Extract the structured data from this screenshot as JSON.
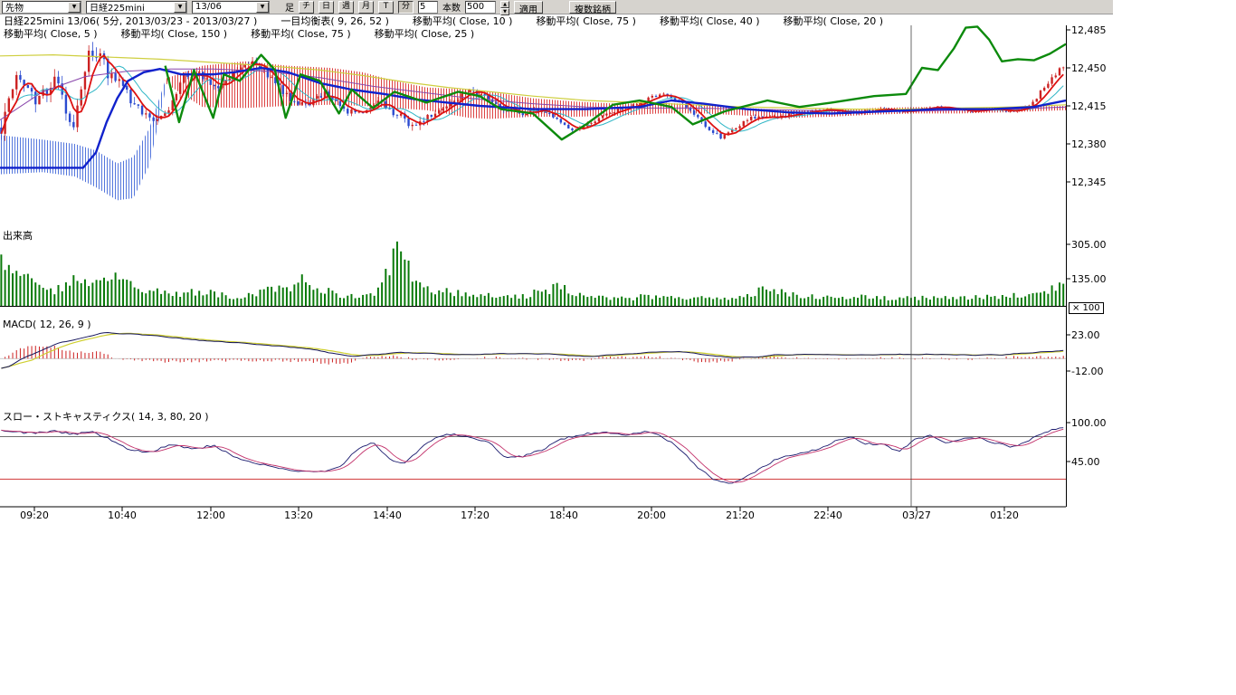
{
  "toolbar": {
    "category": "先物",
    "symbol": "日経225mini",
    "contract": "13/06",
    "bar_label": "足",
    "timeframes": [
      "チ",
      "日",
      "週",
      "月",
      "T",
      "分"
    ],
    "interval_value": "5",
    "bars_label": "本数",
    "bars_value": "500",
    "apply_label": "適用",
    "multi_symbol_label": "複数銘柄"
  },
  "legend": {
    "row1": [
      "日経225mini 13/06( 5分, 2013/03/23 - 2013/03/27 )",
      "一目均衡表( 9, 26, 52 )",
      "移動平均( Close, 10 )",
      "移動平均( Close, 75 )",
      "移動平均( Close, 40 )",
      "移動平均( Close, 20 )"
    ],
    "row2": [
      "移動平均( Close, 5 )",
      "移動平均( Close, 150 )",
      "移動平均( Close, 75 )",
      "移動平均( Close, 25 )"
    ]
  },
  "panels": {
    "volume_label": "出来高",
    "volume_multiplier": "× 100",
    "macd_label": "MACD( 12, 26, 9 )",
    "stoch_label": "スロー・ストキャスティクス( 14, 3, 80, 20 )"
  },
  "price_axis": [
    "12,485",
    "12,450",
    "12,415",
    "12,380",
    "12,345"
  ],
  "volume_axis": [
    "305.00",
    "135.00"
  ],
  "macd_axis": [
    "23.00",
    "-12.00"
  ],
  "stoch_axis": [
    "100.00",
    "45.00"
  ],
  "time_axis": [
    "09:20",
    "10:40",
    "12:00",
    "13:20",
    "14:40",
    "17:20",
    "18:40",
    "20:00",
    "21:20",
    "22:40",
    "03/27",
    "01:20"
  ],
  "chart_data": {
    "type": "candlestick",
    "title": "日経225mini 13/06 5分足 2013/03/23 - 2013/03/27",
    "bars": 280,
    "price_ticks": [
      12485,
      12450,
      12415,
      12380,
      12345
    ],
    "volume_ticks": [
      305,
      135
    ],
    "macd_ticks": [
      23,
      -12
    ],
    "stoch_ticks": [
      100,
      45
    ],
    "stoch_levels": [
      80,
      20
    ],
    "day_separator_index": 10,
    "close_path": [
      12395,
      12445,
      12420,
      12442,
      12395,
      12470,
      12445,
      12425,
      12408,
      12402,
      12440,
      12445,
      12432,
      12448,
      12455,
      12440,
      12422,
      12416,
      12428,
      12412,
      12406,
      12418,
      12408,
      12396,
      12408,
      12418,
      12428,
      12424,
      12412,
      12408,
      12412,
      12400,
      12392,
      12402,
      12410,
      12415,
      12422,
      12425,
      12415,
      12398,
      12386,
      12398,
      12406,
      12404,
      12408,
      12410,
      12412,
      12408,
      12410,
      12412,
      12410,
      12412,
      12414,
      12412,
      12410,
      12412,
      12410,
      12414,
      12432,
      12452
    ],
    "volatility": [
      [
        0,
        16
      ],
      [
        0.06,
        14
      ],
      [
        0.09,
        18
      ],
      [
        0.12,
        12
      ],
      [
        0.17,
        8
      ],
      [
        0.22,
        7
      ],
      [
        0.28,
        7
      ],
      [
        0.34,
        6
      ],
      [
        0.375,
        10
      ],
      [
        0.42,
        6
      ],
      [
        0.47,
        5
      ],
      [
        0.52,
        4.5
      ],
      [
        0.57,
        3.5
      ],
      [
        0.62,
        4
      ],
      [
        0.67,
        5
      ],
      [
        0.72,
        4
      ],
      [
        0.77,
        3
      ],
      [
        0.82,
        3
      ],
      [
        0.87,
        2.2
      ],
      [
        0.92,
        2.2
      ],
      [
        0.96,
        3
      ],
      [
        1,
        6
      ]
    ],
    "volume_path": [
      280,
      170,
      120,
      95,
      150,
      115,
      170,
      140,
      95,
      75,
      65,
      85,
      70,
      55,
      65,
      95,
      115,
      150,
      85,
      60,
      55,
      85,
      310,
      130,
      90,
      75,
      65,
      60,
      70,
      55,
      85,
      105,
      65,
      50,
      42,
      46,
      56,
      62,
      52,
      46,
      42,
      52,
      82,
      92,
      62,
      52,
      46,
      42,
      52,
      46,
      42,
      46,
      52,
      42,
      46,
      52,
      56,
      62,
      92,
      125
    ],
    "overlays": {
      "blue": [
        [
          0,
          12358
        ],
        [
          0.078,
          12358
        ],
        [
          0.09,
          12372
        ],
        [
          0.1,
          12400
        ],
        [
          0.11,
          12422
        ],
        [
          0.12,
          12438
        ],
        [
          0.135,
          12446
        ],
        [
          0.15,
          12449
        ],
        [
          0.17,
          12444
        ],
        [
          0.2,
          12444
        ],
        [
          0.22,
          12446
        ],
        [
          0.245,
          12450
        ],
        [
          0.27,
          12446
        ],
        [
          0.3,
          12436
        ],
        [
          0.33,
          12430
        ],
        [
          0.36,
          12426
        ],
        [
          0.39,
          12421
        ],
        [
          0.42,
          12418
        ],
        [
          0.45,
          12415
        ],
        [
          0.5,
          12412
        ],
        [
          0.55,
          12412
        ],
        [
          0.6,
          12414
        ],
        [
          0.63,
          12420
        ],
        [
          0.66,
          12417
        ],
        [
          0.7,
          12412
        ],
        [
          0.74,
          12409
        ],
        [
          0.78,
          12408
        ],
        [
          0.83,
          12410
        ],
        [
          0.88,
          12412
        ],
        [
          0.93,
          12412
        ],
        [
          0.97,
          12414
        ],
        [
          1,
          12420
        ]
      ],
      "green": [
        [
          0.155,
          12452
        ],
        [
          0.168,
          12400
        ],
        [
          0.182,
          12448
        ],
        [
          0.2,
          12404
        ],
        [
          0.21,
          12444
        ],
        [
          0.225,
          12438
        ],
        [
          0.245,
          12462
        ],
        [
          0.258,
          12448
        ],
        [
          0.268,
          12404
        ],
        [
          0.282,
          12444
        ],
        [
          0.3,
          12438
        ],
        [
          0.318,
          12408
        ],
        [
          0.33,
          12430
        ],
        [
          0.35,
          12413
        ],
        [
          0.37,
          12428
        ],
        [
          0.4,
          12418
        ],
        [
          0.43,
          12428
        ],
        [
          0.45,
          12424
        ],
        [
          0.47,
          12412
        ],
        [
          0.5,
          12408
        ],
        [
          0.527,
          12384
        ],
        [
          0.55,
          12398
        ],
        [
          0.575,
          12416
        ],
        [
          0.6,
          12420
        ],
        [
          0.63,
          12414
        ],
        [
          0.65,
          12398
        ],
        [
          0.68,
          12410
        ],
        [
          0.72,
          12420
        ],
        [
          0.75,
          12414
        ],
        [
          0.78,
          12418
        ],
        [
          0.82,
          12424
        ],
        [
          0.85,
          12426
        ],
        [
          0.865,
          12450
        ],
        [
          0.88,
          12448
        ],
        [
          0.895,
          12468
        ],
        [
          0.906,
          12487
        ],
        [
          0.917,
          12488
        ],
        [
          0.928,
          12476
        ],
        [
          0.94,
          12456
        ],
        [
          0.955,
          12458
        ],
        [
          0.97,
          12457
        ],
        [
          0.985,
          12463
        ],
        [
          1,
          12472
        ]
      ],
      "yellow": [
        [
          0,
          12461
        ],
        [
          0.05,
          12462
        ],
        [
          0.1,
          12460
        ],
        [
          0.15,
          12458
        ],
        [
          0.2,
          12455
        ],
        [
          0.25,
          12452
        ],
        [
          0.3,
          12448
        ],
        [
          0.34,
          12443
        ],
        [
          0.38,
          12437
        ],
        [
          0.42,
          12432
        ],
        [
          0.46,
          12428
        ],
        [
          0.5,
          12424
        ],
        [
          0.55,
          12420
        ],
        [
          0.6,
          12418
        ],
        [
          0.65,
          12416
        ],
        [
          0.7,
          12414
        ],
        [
          0.75,
          12413
        ],
        [
          0.8,
          12412
        ],
        [
          0.85,
          12412
        ],
        [
          0.9,
          12413
        ],
        [
          0.95,
          12414
        ],
        [
          1,
          12416
        ]
      ],
      "purple": [
        [
          0,
          12402
        ],
        [
          0.04,
          12428
        ],
        [
          0.08,
          12442
        ],
        [
          0.12,
          12447
        ],
        [
          0.16,
          12449
        ],
        [
          0.2,
          12449
        ],
        [
          0.25,
          12447
        ],
        [
          0.3,
          12441
        ],
        [
          0.35,
          12433
        ],
        [
          0.4,
          12427
        ],
        [
          0.45,
          12421
        ],
        [
          0.5,
          12417
        ],
        [
          0.55,
          12414
        ],
        [
          0.6,
          12413
        ],
        [
          0.65,
          12413
        ],
        [
          0.7,
          12412
        ],
        [
          0.75,
          12411
        ],
        [
          0.8,
          12410
        ],
        [
          0.85,
          12410
        ],
        [
          0.9,
          12411
        ],
        [
          0.95,
          12412
        ],
        [
          1,
          12414
        ]
      ]
    },
    "ichimoku_cloud": [
      {
        "color": "blue",
        "upper": [
          [
            0,
            12388
          ],
          [
            0.04,
            12384
          ],
          [
            0.07,
            12380
          ],
          [
            0.09,
            12374
          ],
          [
            0.11,
            12362
          ],
          [
            0.125,
            12368
          ],
          [
            0.14,
            12394
          ],
          [
            0.155,
            12438
          ]
        ],
        "lower": [
          [
            0,
            12352
          ],
          [
            0.04,
            12354
          ],
          [
            0.07,
            12350
          ],
          [
            0.09,
            12340
          ],
          [
            0.11,
            12328
          ],
          [
            0.125,
            12330
          ],
          [
            0.14,
            12360
          ],
          [
            0.155,
            12428
          ]
        ]
      },
      {
        "color": "red",
        "upper": [
          [
            0.155,
            12440
          ],
          [
            0.19,
            12452
          ],
          [
            0.23,
            12456
          ],
          [
            0.27,
            12452
          ],
          [
            0.31,
            12450
          ],
          [
            0.34,
            12446
          ],
          [
            0.37,
            12438
          ],
          [
            0.4,
            12432
          ],
          [
            0.44,
            12430
          ],
          [
            0.46,
            12428
          ]
        ],
        "lower": [
          [
            0.155,
            12436
          ],
          [
            0.19,
            12414
          ],
          [
            0.23,
            12413
          ],
          [
            0.27,
            12415
          ],
          [
            0.31,
            12416
          ],
          [
            0.34,
            12415
          ],
          [
            0.37,
            12413
          ],
          [
            0.4,
            12411
          ],
          [
            0.44,
            12404
          ],
          [
            0.46,
            12403
          ]
        ]
      },
      {
        "color": "red",
        "upper": [
          [
            0.46,
            12428
          ],
          [
            0.5,
            12422
          ],
          [
            0.54,
            12419
          ],
          [
            0.58,
            12417
          ],
          [
            0.62,
            12418
          ],
          [
            0.66,
            12416
          ],
          [
            0.7,
            12413
          ],
          [
            0.74,
            12411
          ],
          [
            0.78,
            12411
          ],
          [
            0.82,
            12413
          ],
          [
            0.86,
            12414
          ],
          [
            0.9,
            12413
          ],
          [
            0.94,
            12414
          ],
          [
            1,
            12415
          ]
        ],
        "lower": [
          [
            0.46,
            12403
          ],
          [
            0.5,
            12405
          ],
          [
            0.54,
            12405
          ],
          [
            0.58,
            12406
          ],
          [
            0.62,
            12408
          ],
          [
            0.66,
            12408
          ],
          [
            0.7,
            12406
          ],
          [
            0.74,
            12404
          ],
          [
            0.78,
            12405
          ],
          [
            0.82,
            12407
          ],
          [
            0.86,
            12408
          ],
          [
            0.9,
            12408
          ],
          [
            0.94,
            12409
          ],
          [
            1,
            12411
          ]
        ]
      }
    ],
    "macd_line": [
      [
        0,
        -10
      ],
      [
        0.02,
        2
      ],
      [
        0.05,
        15
      ],
      [
        0.08,
        22
      ],
      [
        0.095,
        25
      ],
      [
        0.12,
        24
      ],
      [
        0.15,
        21
      ],
      [
        0.18,
        18
      ],
      [
        0.22,
        15
      ],
      [
        0.26,
        12
      ],
      [
        0.29,
        9
      ],
      [
        0.31,
        5
      ],
      [
        0.33,
        2
      ],
      [
        0.35,
        4
      ],
      [
        0.37,
        6
      ],
      [
        0.4,
        5
      ],
      [
        0.43,
        4
      ],
      [
        0.46,
        5
      ],
      [
        0.49,
        5
      ],
      [
        0.52,
        4
      ],
      [
        0.55,
        2
      ],
      [
        0.58,
        4
      ],
      [
        0.61,
        6
      ],
      [
        0.63,
        7
      ],
      [
        0.65,
        5
      ],
      [
        0.67,
        2
      ],
      [
        0.69,
        1
      ],
      [
        0.71,
        2
      ],
      [
        0.73,
        4
      ],
      [
        0.76,
        4
      ],
      [
        0.79,
        3
      ],
      [
        0.82,
        4
      ],
      [
        0.85,
        4
      ],
      [
        0.88,
        4
      ],
      [
        0.91,
        3
      ],
      [
        0.94,
        4
      ],
      [
        0.97,
        6
      ],
      [
        1,
        8
      ]
    ],
    "stoch_k": [
      [
        0,
        88
      ],
      [
        0.03,
        85
      ],
      [
        0.05,
        88
      ],
      [
        0.07,
        83
      ],
      [
        0.085,
        88
      ],
      [
        0.1,
        78
      ],
      [
        0.12,
        62
      ],
      [
        0.14,
        58
      ],
      [
        0.16,
        70
      ],
      [
        0.18,
        62
      ],
      [
        0.2,
        68
      ],
      [
        0.22,
        52
      ],
      [
        0.24,
        42
      ],
      [
        0.27,
        33
      ],
      [
        0.3,
        30
      ],
      [
        0.32,
        38
      ],
      [
        0.335,
        62
      ],
      [
        0.35,
        72
      ],
      [
        0.365,
        48
      ],
      [
        0.38,
        42
      ],
      [
        0.4,
        72
      ],
      [
        0.42,
        84
      ],
      [
        0.44,
        80
      ],
      [
        0.46,
        72
      ],
      [
        0.475,
        50
      ],
      [
        0.49,
        52
      ],
      [
        0.51,
        62
      ],
      [
        0.53,
        78
      ],
      [
        0.55,
        84
      ],
      [
        0.57,
        86
      ],
      [
        0.59,
        82
      ],
      [
        0.61,
        88
      ],
      [
        0.625,
        78
      ],
      [
        0.64,
        62
      ],
      [
        0.655,
        38
      ],
      [
        0.67,
        20
      ],
      [
        0.685,
        14
      ],
      [
        0.7,
        22
      ],
      [
        0.715,
        36
      ],
      [
        0.73,
        48
      ],
      [
        0.75,
        56
      ],
      [
        0.77,
        62
      ],
      [
        0.785,
        74
      ],
      [
        0.8,
        80
      ],
      [
        0.815,
        70
      ],
      [
        0.83,
        70
      ],
      [
        0.845,
        58
      ],
      [
        0.86,
        76
      ],
      [
        0.875,
        82
      ],
      [
        0.89,
        70
      ],
      [
        0.905,
        78
      ],
      [
        0.92,
        78
      ],
      [
        0.935,
        72
      ],
      [
        0.95,
        66
      ],
      [
        0.965,
        72
      ],
      [
        0.98,
        86
      ],
      [
        1,
        93
      ]
    ],
    "colors": {
      "up": "#cc2222",
      "down": "#2b4bd0",
      "volume": "#0a7a0a",
      "macd_line": "#14145a",
      "macd_signal": "#cfcf30",
      "macd_hist": "#cc2020",
      "stoch_k": "#1a1a6e",
      "stoch_d": "#c2306a",
      "ma_red": "#dd1111",
      "ma_blue": "#1122cc",
      "ma_green": "#0c8a0c",
      "ma_yellow": "#cfcf40",
      "ma_cyan": "#30b6c6",
      "ma_purple": "#8844aa",
      "cloud_red": "#dd4444",
      "cloud_blue": "#5577dd",
      "level80": "#404040",
      "level20": "#cc2222"
    }
  }
}
